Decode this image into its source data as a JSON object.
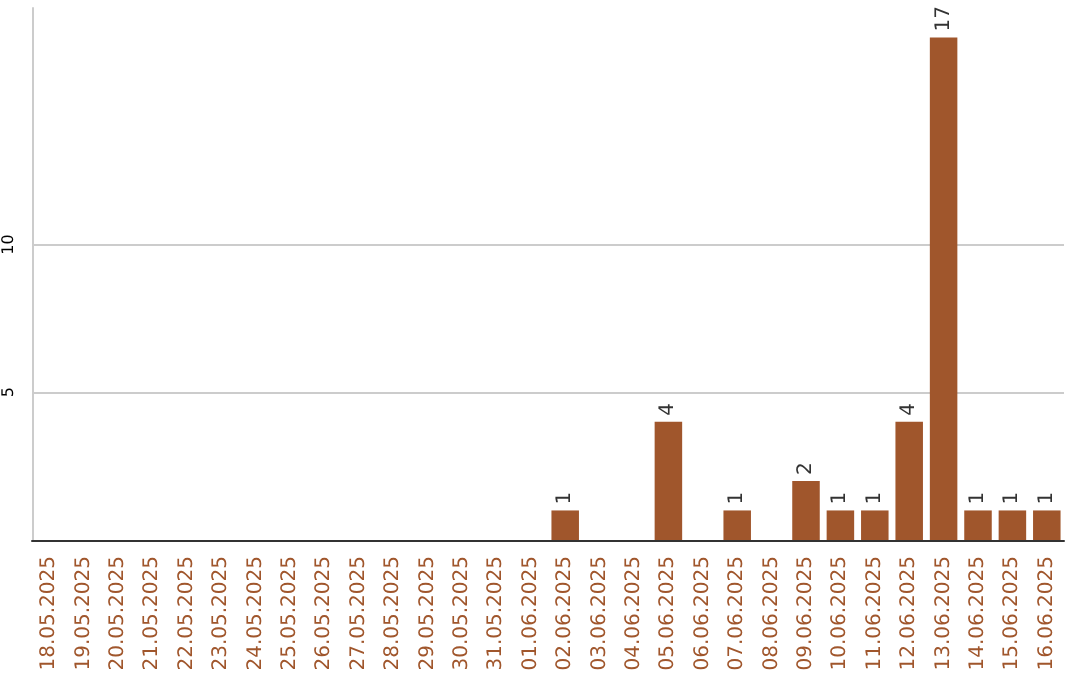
{
  "chart_data": {
    "type": "bar",
    "categories": [
      "18.05.2025",
      "19.05.2025",
      "20.05.2025",
      "21.05.2025",
      "22.05.2025",
      "23.05.2025",
      "24.05.2025",
      "25.05.2025",
      "26.05.2025",
      "27.05.2025",
      "28.05.2025",
      "29.05.2025",
      "30.05.2025",
      "31.05.2025",
      "01.06.2025",
      "02.06.2025",
      "03.06.2025",
      "04.06.2025",
      "05.06.2025",
      "06.06.2025",
      "07.06.2025",
      "08.06.2025",
      "09.06.2025",
      "10.06.2025",
      "11.06.2025",
      "12.06.2025",
      "13.06.2025",
      "14.06.2025",
      "15.06.2025",
      "16.06.2025"
    ],
    "values": [
      0,
      0,
      0,
      0,
      0,
      0,
      0,
      0,
      0,
      0,
      0,
      0,
      0,
      0,
      0,
      1,
      0,
      0,
      4,
      0,
      1,
      0,
      2,
      1,
      1,
      4,
      17,
      1,
      1,
      1
    ],
    "value_labels": [
      null,
      null,
      null,
      null,
      null,
      null,
      null,
      null,
      null,
      null,
      null,
      null,
      null,
      null,
      null,
      "1",
      null,
      null,
      "4",
      null,
      "1",
      null,
      "2",
      "1",
      "1",
      "4",
      "17",
      "1",
      "1",
      "1"
    ],
    "color": "#a0562c",
    "ylim": [
      0,
      18
    ],
    "yticks": [
      5,
      10
    ],
    "grid": "y"
  }
}
